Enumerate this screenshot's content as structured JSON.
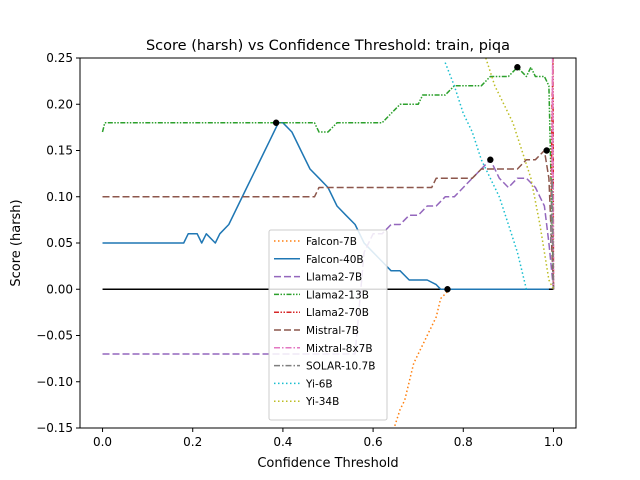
{
  "chart_data": {
    "type": "line",
    "title": "Score (harsh) vs Confidence Threshold: train, piqa",
    "xlabel": "Confidence Threshold",
    "ylabel": "Score (harsh)",
    "xlim": [
      -0.05,
      1.05
    ],
    "ylim": [
      -0.15,
      0.25
    ],
    "xticks": [
      {
        "value": 0.0,
        "label": "0.0"
      },
      {
        "value": 0.2,
        "label": "0.2"
      },
      {
        "value": 0.4,
        "label": "0.4"
      },
      {
        "value": 0.6,
        "label": "0.6"
      },
      {
        "value": 0.8,
        "label": "0.8"
      },
      {
        "value": 1.0,
        "label": "1.0"
      }
    ],
    "yticks": [
      {
        "value": -0.15,
        "label": "−0.15"
      },
      {
        "value": -0.1,
        "label": "−0.10"
      },
      {
        "value": -0.05,
        "label": "−0.05"
      },
      {
        "value": 0.0,
        "label": "0.00"
      },
      {
        "value": 0.05,
        "label": "0.05"
      },
      {
        "value": 0.1,
        "label": "0.10"
      },
      {
        "value": 0.15,
        "label": "0.15"
      },
      {
        "value": 0.2,
        "label": "0.20"
      },
      {
        "value": 0.25,
        "label": "0.25"
      }
    ],
    "grid": false,
    "legend_position": "lower-center",
    "zero_line": {
      "y": 0,
      "x": [
        0,
        1
      ],
      "color": "#000000"
    },
    "series": [
      {
        "name": "Falcon-7B",
        "color": "#ff7f0e",
        "dash": "dotted",
        "x": [
          0.64,
          0.66,
          0.67,
          0.68,
          0.69,
          0.7,
          0.71,
          0.72,
          0.73,
          0.74,
          0.75,
          0.76,
          0.77
        ],
        "y": [
          -0.16,
          -0.13,
          -0.12,
          -0.1,
          -0.08,
          -0.07,
          -0.06,
          -0.05,
          -0.04,
          -0.03,
          -0.01,
          -0.005,
          0.0
        ]
      },
      {
        "name": "Falcon-40B",
        "color": "#1f77b4",
        "dash": "solid",
        "x": [
          0.0,
          0.18,
          0.19,
          0.21,
          0.22,
          0.23,
          0.25,
          0.26,
          0.28,
          0.3,
          0.32,
          0.34,
          0.36,
          0.37,
          0.38,
          0.39,
          0.4,
          0.42,
          0.44,
          0.46,
          0.48,
          0.5,
          0.52,
          0.54,
          0.56,
          0.58,
          0.6,
          0.62,
          0.64,
          0.66,
          0.68,
          0.7,
          0.72,
          0.74,
          0.75,
          0.76,
          0.77,
          0.8,
          0.84,
          0.88,
          0.92,
          0.96,
          0.99
        ],
        "y": [
          0.05,
          0.05,
          0.06,
          0.06,
          0.05,
          0.06,
          0.05,
          0.06,
          0.07,
          0.09,
          0.11,
          0.13,
          0.15,
          0.16,
          0.17,
          0.18,
          0.18,
          0.17,
          0.15,
          0.13,
          0.12,
          0.11,
          0.09,
          0.08,
          0.07,
          0.05,
          0.04,
          0.03,
          0.02,
          0.02,
          0.01,
          0.01,
          0.01,
          0.005,
          0.0,
          0.0,
          0.0,
          0.0,
          0.0,
          0.0,
          0.0,
          0.0,
          0.0
        ]
      },
      {
        "name": "Llama2-7B",
        "color": "#9467bd",
        "dash": "dashed",
        "x": [
          0.0,
          0.2,
          0.4,
          0.5,
          0.56,
          0.58,
          0.6,
          0.62,
          0.64,
          0.66,
          0.68,
          0.7,
          0.72,
          0.74,
          0.76,
          0.78,
          0.8,
          0.82,
          0.84,
          0.86,
          0.88,
          0.9,
          0.92,
          0.94,
          0.96,
          0.98,
          0.99,
          1.0
        ],
        "y": [
          -0.07,
          -0.07,
          -0.07,
          -0.07,
          -0.07,
          0.04,
          0.06,
          0.06,
          0.07,
          0.07,
          0.08,
          0.08,
          0.09,
          0.09,
          0.1,
          0.1,
          0.11,
          0.12,
          0.13,
          0.14,
          0.12,
          0.11,
          0.12,
          0.12,
          0.11,
          0.09,
          0.05,
          0.0
        ]
      },
      {
        "name": "Llama2-13B",
        "color": "#2ca02c",
        "dash": "dashdotdot",
        "x": [
          0.0,
          0.005,
          0.05,
          0.1,
          0.2,
          0.3,
          0.4,
          0.47,
          0.48,
          0.5,
          0.52,
          0.6,
          0.62,
          0.64,
          0.66,
          0.68,
          0.7,
          0.71,
          0.72,
          0.74,
          0.76,
          0.78,
          0.8,
          0.82,
          0.84,
          0.86,
          0.88,
          0.9,
          0.92,
          0.94,
          0.95,
          0.96,
          0.97,
          0.98,
          0.99,
          1.0
        ],
        "y": [
          0.17,
          0.18,
          0.18,
          0.18,
          0.18,
          0.18,
          0.18,
          0.18,
          0.17,
          0.17,
          0.18,
          0.18,
          0.18,
          0.19,
          0.2,
          0.2,
          0.2,
          0.21,
          0.21,
          0.21,
          0.21,
          0.22,
          0.22,
          0.22,
          0.22,
          0.23,
          0.23,
          0.23,
          0.24,
          0.23,
          0.24,
          0.23,
          0.23,
          0.23,
          0.22,
          0.0
        ]
      },
      {
        "name": "Llama2-70B",
        "color": "#d62728",
        "dash": "dashdotdot",
        "x": [
          0.995,
          0.997,
          0.999,
          1.0
        ],
        "y": [
          0.1,
          0.2,
          0.25,
          0.0
        ]
      },
      {
        "name": "Mistral-7B",
        "color": "#8c564b",
        "dash": "dashed",
        "x": [
          0.0,
          0.1,
          0.2,
          0.3,
          0.4,
          0.47,
          0.48,
          0.55,
          0.6,
          0.65,
          0.7,
          0.73,
          0.74,
          0.76,
          0.78,
          0.8,
          0.82,
          0.84,
          0.86,
          0.88,
          0.9,
          0.92,
          0.94,
          0.96,
          0.98,
          0.99,
          1.0
        ],
        "y": [
          0.1,
          0.1,
          0.1,
          0.1,
          0.1,
          0.1,
          0.11,
          0.11,
          0.11,
          0.11,
          0.11,
          0.11,
          0.12,
          0.12,
          0.12,
          0.12,
          0.12,
          0.13,
          0.13,
          0.13,
          0.13,
          0.13,
          0.14,
          0.14,
          0.15,
          0.12,
          0.0
        ]
      },
      {
        "name": "Mixtral-8x7B",
        "color": "#e377c2",
        "dash": "dashdot",
        "x": [
          0.996,
          0.998,
          1.0
        ],
        "y": [
          0.05,
          0.25,
          0.0
        ]
      },
      {
        "name": "SOLAR-10.7B",
        "color": "#7f7f7f",
        "dash": "dashdot",
        "x": [
          0.994,
          0.997,
          1.0
        ],
        "y": [
          0.05,
          0.12,
          0.0
        ]
      },
      {
        "name": "Yi-6B",
        "color": "#17becf",
        "dash": "dotted",
        "x": [
          0.76,
          0.78,
          0.8,
          0.82,
          0.84,
          0.86,
          0.88,
          0.9,
          0.92,
          0.94
        ],
        "y": [
          0.245,
          0.22,
          0.19,
          0.17,
          0.14,
          0.12,
          0.1,
          0.07,
          0.04,
          0.0
        ]
      },
      {
        "name": "Yi-34B",
        "color": "#bcbd22",
        "dash": "dotted",
        "x": [
          0.85,
          0.87,
          0.89,
          0.91,
          0.93,
          0.95,
          0.97,
          0.98,
          0.99,
          1.0
        ],
        "y": [
          0.25,
          0.22,
          0.2,
          0.18,
          0.15,
          0.12,
          0.07,
          0.04,
          0.01,
          0.0
        ]
      }
    ],
    "markers": [
      {
        "x": 0.385,
        "y": 0.18
      },
      {
        "x": 0.765,
        "y": 0.0
      },
      {
        "x": 0.86,
        "y": 0.14
      },
      {
        "x": 0.92,
        "y": 0.24
      },
      {
        "x": 0.985,
        "y": 0.15
      }
    ]
  }
}
